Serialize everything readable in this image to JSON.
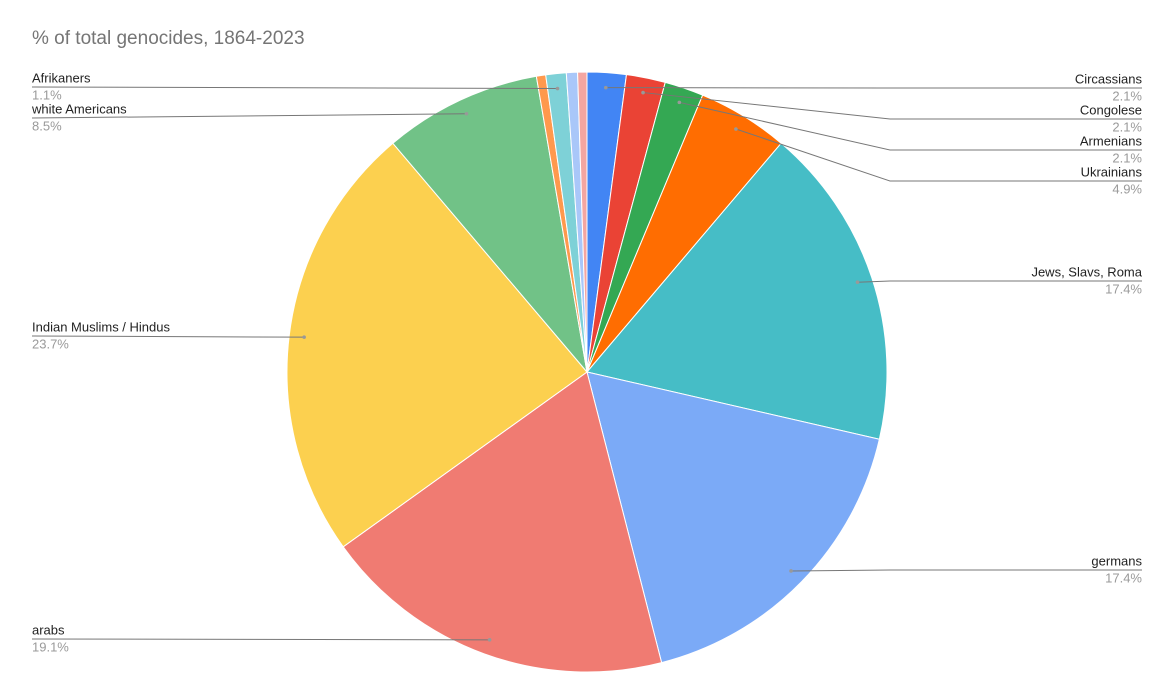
{
  "chart_data": {
    "type": "pie",
    "title": "% of total genocides, 1864-2023",
    "categories": [
      "Circassians",
      "Congolese",
      "Armenians",
      "Ukrainians",
      "Jews, Slavs, Roma",
      "germans",
      "arabs",
      "Indian Muslims / Hindus",
      "white Americans",
      null,
      "Afrikaners",
      null,
      null
    ],
    "values": [
      2.1,
      2.1,
      2.1,
      4.9,
      17.4,
      17.4,
      19.1,
      23.7,
      8.5,
      0.5,
      1.1,
      0.6,
      0.5
    ],
    "value_labels": [
      "2.1%",
      "2.1%",
      "2.1%",
      "4.9%",
      "17.4%",
      "17.4%",
      "19.1%",
      "23.7%",
      "8.5%",
      null,
      "1.1%",
      null,
      null
    ],
    "colors": [
      "#4285f4",
      "#ea4335",
      "#34a853",
      "#ff6d01",
      "#46bdc6",
      "#7baaf7",
      "#f07b72",
      "#fcd04f",
      "#71c287",
      "#ff994d",
      "#7ed1d7",
      "#a9c7f9",
      "#f4a6a1"
    ]
  }
}
